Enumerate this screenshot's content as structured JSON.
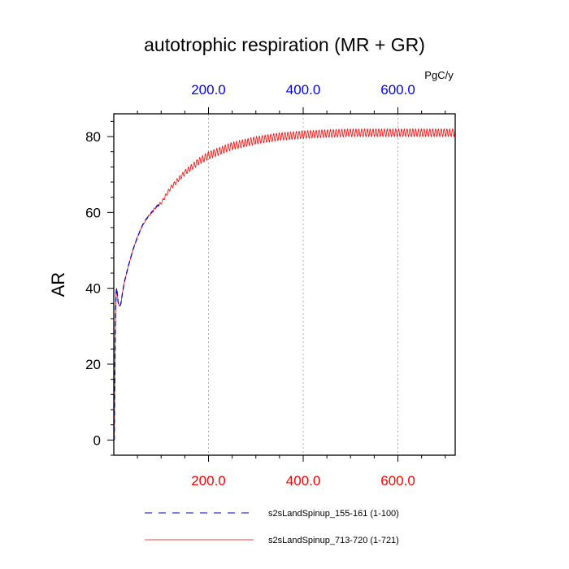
{
  "chart_data": {
    "type": "line",
    "title": "autotrophic respiration (MR + GR)",
    "ylabel": "AR",
    "units_label": "PgC/y",
    "xlim": [
      0,
      721
    ],
    "ylim": [
      -4,
      86
    ],
    "grid": "vertical dotted at major x ticks",
    "x_ticks": [
      200,
      400,
      600
    ],
    "x_tick_labels_bottom": [
      "200.0",
      "400.0",
      "600.0"
    ],
    "x_tick_labels_top": [
      "200.0",
      "400.0",
      "600.0"
    ],
    "y_ticks": [
      0,
      20,
      40,
      60,
      80
    ],
    "y_tick_labels": [
      "0",
      "20",
      "40",
      "60",
      "80"
    ],
    "bottom_tick_color": "#ff0000",
    "top_tick_color": "#0000ff",
    "legend_placement": "below plot",
    "series": [
      {
        "name": "s2sLandSpinup_155-161 (1-100)",
        "color": "#0000cc",
        "dash": true,
        "x_range": [
          1,
          100
        ],
        "points": [
          [
            1,
            0
          ],
          [
            2,
            15
          ],
          [
            3,
            28
          ],
          [
            4,
            35
          ],
          [
            5,
            39
          ],
          [
            6,
            40
          ],
          [
            7,
            39
          ],
          [
            9,
            36.5
          ],
          [
            11,
            35.5
          ],
          [
            13,
            35.3
          ],
          [
            15,
            36
          ],
          [
            18,
            38.5
          ],
          [
            22,
            41.5
          ],
          [
            30,
            45.5
          ],
          [
            40,
            50
          ],
          [
            50,
            53.5
          ],
          [
            60,
            56.5
          ],
          [
            70,
            58.5
          ],
          [
            80,
            60
          ],
          [
            90,
            61.5
          ],
          [
            100,
            62.5
          ]
        ]
      },
      {
        "name": "s2sLandSpinup_713-720 (1-721)",
        "color": "#ff0000",
        "dash": false,
        "x_range": [
          1,
          721
        ],
        "oscillation_amplitude": 1.0,
        "oscillation_period": 6,
        "points": [
          [
            1,
            0
          ],
          [
            2,
            15
          ],
          [
            3,
            28
          ],
          [
            4,
            35
          ],
          [
            5,
            39
          ],
          [
            6,
            40
          ],
          [
            7,
            39
          ],
          [
            9,
            36.5
          ],
          [
            11,
            35.5
          ],
          [
            13,
            35.3
          ],
          [
            15,
            36
          ],
          [
            18,
            38.5
          ],
          [
            22,
            41.5
          ],
          [
            30,
            45.5
          ],
          [
            40,
            50
          ],
          [
            50,
            53.5
          ],
          [
            60,
            56.5
          ],
          [
            70,
            58.5
          ],
          [
            80,
            60
          ],
          [
            90,
            61.5
          ],
          [
            100,
            62.5
          ],
          [
            120,
            66.5
          ],
          [
            150,
            70.5
          ],
          [
            180,
            73.5
          ],
          [
            200,
            75
          ],
          [
            250,
            77.5
          ],
          [
            300,
            79
          ],
          [
            350,
            80
          ],
          [
            400,
            80.5
          ],
          [
            450,
            80.8
          ],
          [
            500,
            81
          ],
          [
            600,
            81
          ],
          [
            721,
            81
          ]
        ]
      }
    ]
  }
}
